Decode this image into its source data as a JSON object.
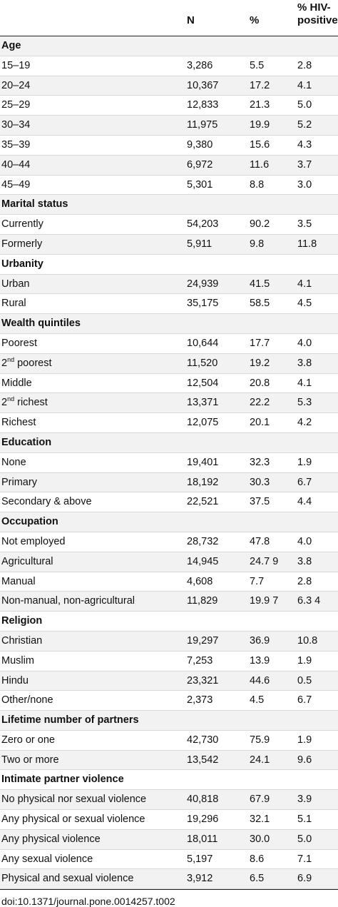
{
  "header": {
    "n": "N",
    "pct": "%",
    "hiv_line1": "% HIV-",
    "hiv_line2": "positive"
  },
  "rows": [
    {
      "label": "Age",
      "section": true
    },
    {
      "label": "15–19",
      "n": "3,286",
      "pct": "5.5",
      "hiv": "2.8"
    },
    {
      "label": "20–24",
      "n": "10,367",
      "pct": "17.2",
      "hiv": "4.1"
    },
    {
      "label": "25–29",
      "n": "12,833",
      "pct": "21.3",
      "hiv": "5.0"
    },
    {
      "label": "30–34",
      "n": "11,975",
      "pct": "19.9",
      "hiv": "5.2"
    },
    {
      "label": "35–39",
      "n": "9,380",
      "pct": "15.6",
      "hiv": "4.3"
    },
    {
      "label": "40–44",
      "n": "6,972",
      "pct": "11.6",
      "hiv": "3.7"
    },
    {
      "label": "45–49",
      "n": "5,301",
      "pct": "8.8",
      "hiv": "3.0"
    },
    {
      "label": "Marital status",
      "section": true
    },
    {
      "label": "Currently",
      "n": "54,203",
      "pct": "90.2",
      "hiv": "3.5"
    },
    {
      "label": "Formerly",
      "n": "5,911",
      "pct": "9.8",
      "hiv": "11.8"
    },
    {
      "label": "Urbanity",
      "section": true
    },
    {
      "label": "Urban",
      "n": "24,939",
      "pct": "41.5",
      "hiv": "4.1"
    },
    {
      "label": "Rural",
      "n": "35,175",
      "pct": "58.5",
      "hiv": "4.5"
    },
    {
      "label": "Wealth quintiles",
      "section": true
    },
    {
      "label": "Poorest",
      "n": "10,644",
      "pct": "17.7",
      "hiv": "4.0"
    },
    {
      "label": "2",
      "sup": "nd",
      "suffix": " poorest",
      "n": "11,520",
      "pct": "19.2",
      "hiv": "3.8"
    },
    {
      "label": "Middle",
      "n": "12,504",
      "pct": "20.8",
      "hiv": "4.1"
    },
    {
      "label": "2",
      "sup": "nd",
      "suffix": " richest",
      "n": "13,371",
      "pct": "22.2",
      "hiv": "5.3"
    },
    {
      "label": "Richest",
      "n": "12,075",
      "pct": "20.1",
      "hiv": "4.2"
    },
    {
      "label": "Education",
      "section": true
    },
    {
      "label": "None",
      "n": "19,401",
      "pct": "32.3",
      "hiv": "1.9"
    },
    {
      "label": "Primary",
      "n": "18,192",
      "pct": "30.3",
      "hiv": "6.7"
    },
    {
      "label": "Secondary & above",
      "n": "22,521",
      "pct": "37.5",
      "hiv": "4.4"
    },
    {
      "label": "Occupation",
      "section": true
    },
    {
      "label": "Not employed",
      "n": "28,732",
      "pct": "47.8",
      "hiv": "4.0"
    },
    {
      "label": "Agricultural",
      "n": "14,945",
      "pct": "24.7 9",
      "hiv": "3.8"
    },
    {
      "label": "Manual",
      "n": "4,608",
      "pct": "7.7",
      "hiv": "2.8"
    },
    {
      "label": "Non-manual, non-agricultural",
      "n": "11,829",
      "pct": "19.9 7",
      "hiv": "6.3 4"
    },
    {
      "label": "Religion",
      "section": true
    },
    {
      "label": "Christian",
      "n": "19,297",
      "pct": "36.9",
      "hiv": "10.8"
    },
    {
      "label": "Muslim",
      "n": "7,253",
      "pct": "13.9",
      "hiv": "1.9"
    },
    {
      "label": "Hindu",
      "n": "23,321",
      "pct": "44.6",
      "hiv": "0.5"
    },
    {
      "label": "Other/none",
      "n": "2,373",
      "pct": "4.5",
      "hiv": "6.7"
    },
    {
      "label": "Lifetime number of partners",
      "section": true
    },
    {
      "label": "Zero or one",
      "n": "42,730",
      "pct": "75.9",
      "hiv": "1.9"
    },
    {
      "label": "Two or more",
      "n": "13,542",
      "pct": "24.1",
      "hiv": "9.6"
    },
    {
      "label": "Intimate partner violence",
      "section": true
    },
    {
      "label": "No physical nor sexual violence",
      "n": "40,818",
      "pct": "67.9",
      "hiv": "3.9"
    },
    {
      "label": "Any physical or sexual violence",
      "n": "19,296",
      "pct": "32.1",
      "hiv": "5.1"
    },
    {
      "label": "Any physical violence",
      "n": "18,011",
      "pct": "30.0",
      "hiv": "5.0"
    },
    {
      "label": "Any sexual violence",
      "n": "5,197",
      "pct": "8.6",
      "hiv": "7.1"
    },
    {
      "label": "Physical and sexual violence",
      "n": "3,912",
      "pct": "6.5",
      "hiv": "6.9"
    }
  ],
  "doi": "doi:10.1371/journal.pone.0014257.t002"
}
